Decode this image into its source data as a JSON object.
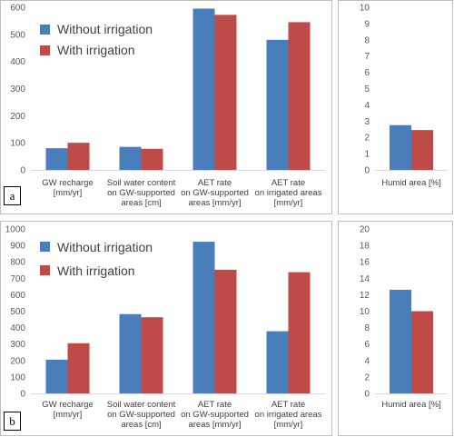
{
  "colors": {
    "without": "#4a7ebb",
    "with": "#be4b48"
  },
  "legend": {
    "without": "Without irrigation",
    "with": "With irrigation"
  },
  "chart_data": [
    {
      "type": "bar",
      "panel": "a",
      "categories": [
        [
          "GW recharge",
          "[mm/yr]"
        ],
        [
          "Soil water content",
          "on GW-supported",
          "areas [cm]"
        ],
        [
          "AET rate",
          "on GW-supported",
          "areas [mm/yr]"
        ],
        [
          "AET rate",
          "on irrigated areas",
          "[mm/yr]"
        ]
      ],
      "series": [
        {
          "name": "Without irrigation",
          "values": [
            80,
            85,
            595,
            480
          ]
        },
        {
          "name": "With irrigation",
          "values": [
            100,
            78,
            572,
            545
          ]
        }
      ],
      "ylim": [
        0,
        600
      ],
      "yticks": [
        0,
        100,
        200,
        300,
        400,
        500,
        600
      ],
      "legend_position": "top-left",
      "grid": false
    },
    {
      "type": "bar",
      "panel": "a-humid",
      "categories": [
        [
          "Humid area [%]"
        ]
      ],
      "series": [
        {
          "name": "Without irrigation",
          "values": [
            2.75
          ]
        },
        {
          "name": "With irrigation",
          "values": [
            2.45
          ]
        }
      ],
      "ylim": [
        0,
        10
      ],
      "yticks": [
        0,
        1,
        2,
        3,
        4,
        5,
        6,
        7,
        8,
        9,
        10
      ],
      "grid": false
    },
    {
      "type": "bar",
      "panel": "b",
      "categories": [
        [
          "GW recharge",
          "[mm/yr]"
        ],
        [
          "Soil water content",
          "on GW-supported",
          "areas [cm]"
        ],
        [
          "AET rate",
          "on GW-supported",
          "areas [mm/yr]"
        ],
        [
          "AET rate",
          "on irrigated areas",
          "[mm/yr]"
        ]
      ],
      "series": [
        {
          "name": "Without irrigation",
          "values": [
            205,
            482,
            922,
            378
          ]
        },
        {
          "name": "With irrigation",
          "values": [
            305,
            463,
            752,
            737
          ]
        }
      ],
      "ylim": [
        0,
        1000
      ],
      "yticks": [
        0,
        100,
        200,
        300,
        400,
        500,
        600,
        700,
        800,
        900,
        1000
      ],
      "legend_position": "top-left",
      "grid": false
    },
    {
      "type": "bar",
      "panel": "b-humid",
      "categories": [
        [
          "Humid area [%]"
        ]
      ],
      "series": [
        {
          "name": "Without irrigation",
          "values": [
            12.6
          ]
        },
        {
          "name": "With irrigation",
          "values": [
            10.0
          ]
        }
      ],
      "ylim": [
        0,
        20
      ],
      "yticks": [
        0,
        2,
        4,
        6,
        8,
        10,
        12,
        14,
        16,
        18,
        20
      ],
      "grid": false
    }
  ],
  "panel_labels": {
    "a": "a",
    "b": "b"
  }
}
